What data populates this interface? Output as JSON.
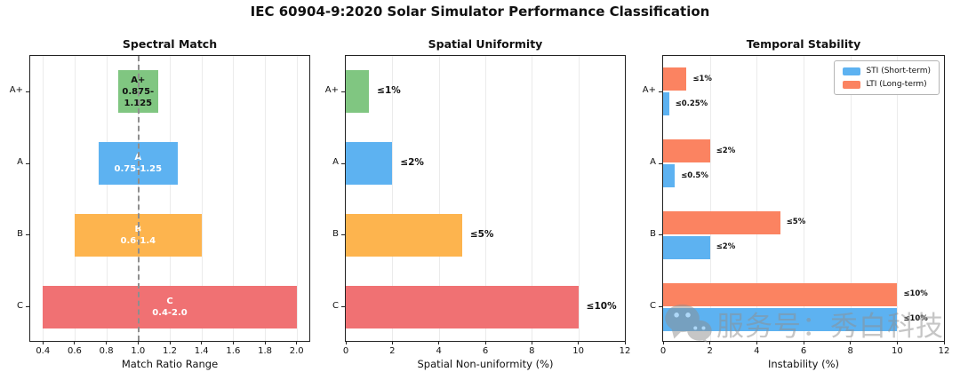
{
  "title": "IEC 60904-9:2020 Solar Simulator Performance Classification",
  "watermark": {
    "text": "服务号：秀白科技",
    "icon": "wechat-icon"
  },
  "chart_data": [
    {
      "type": "bar",
      "orientation": "horizontal",
      "title": "Spectral Match",
      "xlabel": "Match Ratio Range",
      "categories": [
        "A+",
        "A",
        "B",
        "C"
      ],
      "bars": [
        {
          "category": "A+",
          "range": [
            0.875,
            1.125
          ],
          "label": "A+\n0.875-1.125",
          "color": "#80c681",
          "label_color": "#111111"
        },
        {
          "category": "A",
          "range": [
            0.75,
            1.25
          ],
          "label": "A\n0.75-1.25",
          "color": "#5db2f1",
          "label_color": "#ffffff"
        },
        {
          "category": "B",
          "range": [
            0.6,
            1.4
          ],
          "label": "B\n0.6-1.4",
          "color": "#fdb44e",
          "label_color": "#ffffff"
        },
        {
          "category": "C",
          "range": [
            0.4,
            2.0
          ],
          "label": "C\n0.4-2.0",
          "color": "#f07173",
          "label_color": "#ffffff"
        }
      ],
      "xlim": [
        0.32,
        2.08
      ],
      "xticks": [
        0.4,
        0.6,
        0.8,
        1.0,
        1.2,
        1.4,
        1.6,
        1.8,
        2.0
      ],
      "xtick_labels": [
        "0.4",
        "0.6",
        "0.8",
        "1.0",
        "1.2",
        "1.4",
        "1.6",
        "1.8",
        "2.0"
      ],
      "reference_line": 1.0,
      "grid": true
    },
    {
      "type": "bar",
      "orientation": "horizontal",
      "title": "Spatial Uniformity",
      "xlabel": "Spatial Non-uniformity (%)",
      "categories": [
        "A+",
        "A",
        "B",
        "C"
      ],
      "values": [
        1,
        2,
        5,
        10
      ],
      "value_labels": [
        "≤1%",
        "≤2%",
        "≤5%",
        "≤10%"
      ],
      "colors": [
        "#80c681",
        "#5db2f1",
        "#fdb44e",
        "#f07173"
      ],
      "xlim": [
        0,
        12
      ],
      "xticks": [
        0,
        2,
        4,
        6,
        8,
        10,
        12
      ],
      "xtick_labels": [
        "0",
        "2",
        "4",
        "6",
        "8",
        "10",
        "12"
      ],
      "grid": true
    },
    {
      "type": "bar",
      "orientation": "horizontal",
      "grouped": true,
      "title": "Temporal Stability",
      "xlabel": "Instability (%)",
      "categories": [
        "A+",
        "A",
        "B",
        "C"
      ],
      "series": [
        {
          "name": "STI (Short-term)",
          "color": "#5db2f1",
          "row": "bottom",
          "values": [
            0.25,
            0.5,
            2,
            10
          ],
          "labels": [
            "≤0.25%",
            "≤0.5%",
            "≤2%",
            "≤10%"
          ]
        },
        {
          "name": "LTI (Long-term)",
          "color": "#fb8361",
          "row": "top",
          "values": [
            1,
            2,
            5,
            10
          ],
          "labels": [
            "≤1%",
            "≤2%",
            "≤5%",
            "≤10%"
          ]
        }
      ],
      "legend": {
        "position": "upper-right",
        "items": [
          "STI (Short-term)",
          "LTI (Long-term)"
        ]
      },
      "xlim": [
        0,
        12
      ],
      "xticks": [
        0,
        2,
        4,
        6,
        8,
        10,
        12
      ],
      "xtick_labels": [
        "0",
        "2",
        "4",
        "6",
        "8",
        "10",
        "12"
      ],
      "grid": true
    }
  ]
}
